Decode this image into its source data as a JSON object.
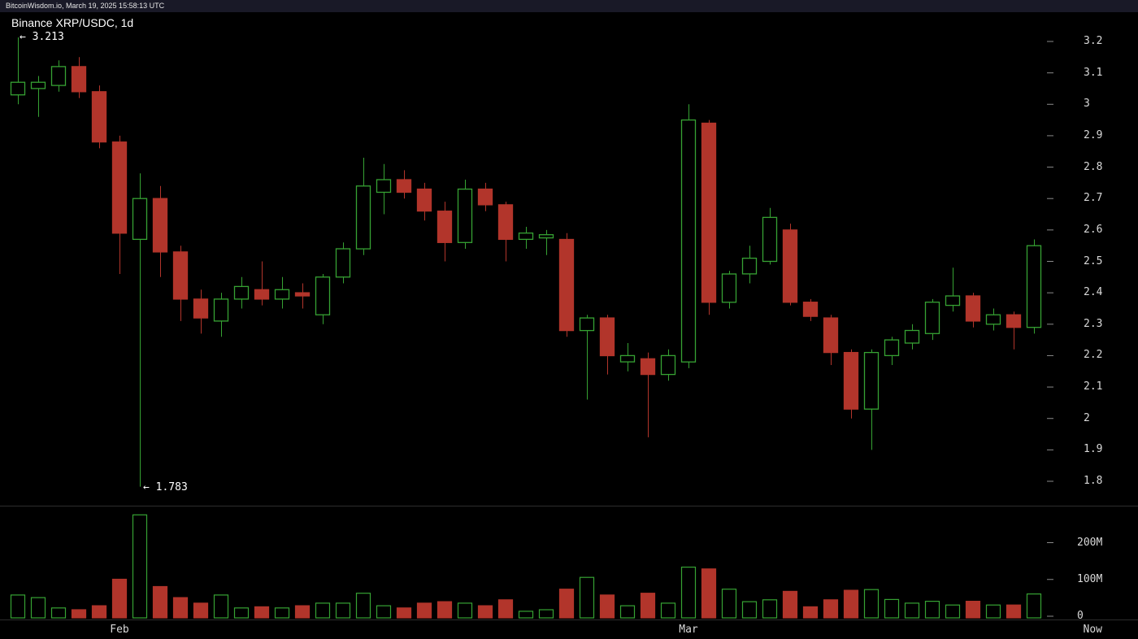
{
  "topbar": {
    "text": "BitcoinWisdom.io, March 19, 2025 15:58:13 UTC"
  },
  "chart": {
    "title": "Binance XRP/USDC, 1d",
    "high_annotation": "← 3.213",
    "low_annotation": "← 1.783"
  },
  "colors": {
    "background": "#000000",
    "topbar_bg": "#191927",
    "up": "#36a233",
    "down": "#b2352b",
    "text": "#ffffff",
    "axis_text": "#d9d9d9",
    "tick_dash": "#8a8a8a",
    "separator": "#2d2d2d"
  },
  "price_axis": {
    "ticks": [
      "3.2",
      "3.1",
      "3",
      "2.9",
      "2.8",
      "2.7",
      "2.6",
      "2.5",
      "2.4",
      "2.3",
      "2.2",
      "2.1",
      "2",
      "1.9",
      "1.8"
    ]
  },
  "volume_axis": {
    "ticks": [
      "200M",
      "100M",
      "0"
    ]
  },
  "x_axis": {
    "labels": [
      {
        "text": "Feb",
        "candle_index": 5,
        "align": "center"
      },
      {
        "text": "Mar",
        "candle_index": 33,
        "align": "center"
      },
      {
        "text": "Now",
        "align": "right"
      }
    ]
  },
  "chart_data": {
    "type": "candlestick+volume",
    "exchange": "Binance",
    "symbol": "XRP/USDC",
    "interval": "1d",
    "session_high": 3.213,
    "session_low": 1.783,
    "price_ylim": [
      1.8,
      3.2
    ],
    "volume_ylim_millions": [
      0,
      290
    ],
    "volume_unit": "M",
    "candle_format": [
      "open",
      "high",
      "low",
      "close",
      "volume_millions"
    ],
    "candles": [
      [
        3.03,
        3.213,
        3.0,
        3.07,
        62
      ],
      [
        3.05,
        3.09,
        2.96,
        3.07,
        55
      ],
      [
        3.06,
        3.14,
        3.04,
        3.12,
        27
      ],
      [
        3.12,
        3.15,
        3.02,
        3.04,
        22
      ],
      [
        3.04,
        3.06,
        2.86,
        2.88,
        33
      ],
      [
        2.88,
        2.9,
        2.46,
        2.59,
        105
      ],
      [
        2.57,
        2.78,
        1.783,
        2.7,
        280
      ],
      [
        2.7,
        2.74,
        2.45,
        2.53,
        85
      ],
      [
        2.53,
        2.55,
        2.31,
        2.38,
        55
      ],
      [
        2.38,
        2.41,
        2.27,
        2.32,
        40
      ],
      [
        2.31,
        2.4,
        2.26,
        2.38,
        62
      ],
      [
        2.38,
        2.45,
        2.35,
        2.42,
        27
      ],
      [
        2.41,
        2.5,
        2.36,
        2.38,
        30
      ],
      [
        2.38,
        2.45,
        2.35,
        2.41,
        27
      ],
      [
        2.4,
        2.43,
        2.35,
        2.39,
        33
      ],
      [
        2.33,
        2.46,
        2.3,
        2.45,
        40
      ],
      [
        2.45,
        2.56,
        2.43,
        2.54,
        40
      ],
      [
        2.54,
        2.83,
        2.52,
        2.74,
        67
      ],
      [
        2.72,
        2.81,
        2.65,
        2.76,
        33
      ],
      [
        2.76,
        2.79,
        2.7,
        2.72,
        27
      ],
      [
        2.73,
        2.75,
        2.63,
        2.66,
        40
      ],
      [
        2.66,
        2.69,
        2.5,
        2.56,
        44
      ],
      [
        2.56,
        2.76,
        2.54,
        2.73,
        40
      ],
      [
        2.73,
        2.75,
        2.66,
        2.68,
        33
      ],
      [
        2.68,
        2.69,
        2.5,
        2.57,
        49
      ],
      [
        2.57,
        2.61,
        2.54,
        2.59,
        18
      ],
      [
        2.575,
        2.6,
        2.52,
        2.585,
        22
      ],
      [
        2.57,
        2.59,
        2.26,
        2.28,
        78
      ],
      [
        2.28,
        2.33,
        2.06,
        2.32,
        110
      ],
      [
        2.32,
        2.33,
        2.14,
        2.2,
        62
      ],
      [
        2.18,
        2.24,
        2.15,
        2.2,
        33
      ],
      [
        2.19,
        2.21,
        1.94,
        2.14,
        67
      ],
      [
        2.14,
        2.22,
        2.12,
        2.2,
        40
      ],
      [
        2.18,
        3.0,
        2.16,
        2.95,
        138
      ],
      [
        2.94,
        2.95,
        2.33,
        2.37,
        133
      ],
      [
        2.37,
        2.47,
        2.35,
        2.46,
        78
      ],
      [
        2.46,
        2.55,
        2.43,
        2.51,
        44
      ],
      [
        2.5,
        2.67,
        2.49,
        2.64,
        49
      ],
      [
        2.6,
        2.62,
        2.36,
        2.37,
        72
      ],
      [
        2.37,
        2.38,
        2.31,
        2.325,
        30
      ],
      [
        2.32,
        2.33,
        2.17,
        2.21,
        49
      ],
      [
        2.21,
        2.22,
        2.0,
        2.03,
        75
      ],
      [
        2.03,
        2.22,
        1.9,
        2.21,
        77
      ],
      [
        2.2,
        2.26,
        2.17,
        2.25,
        50
      ],
      [
        2.24,
        2.3,
        2.22,
        2.28,
        40
      ],
      [
        2.27,
        2.38,
        2.25,
        2.37,
        45
      ],
      [
        2.36,
        2.48,
        2.34,
        2.39,
        35
      ],
      [
        2.39,
        2.4,
        2.29,
        2.31,
        45
      ],
      [
        2.3,
        2.35,
        2.28,
        2.33,
        35
      ],
      [
        2.33,
        2.34,
        2.22,
        2.29,
        35
      ],
      [
        2.29,
        2.57,
        2.27,
        2.55,
        65
      ]
    ]
  }
}
